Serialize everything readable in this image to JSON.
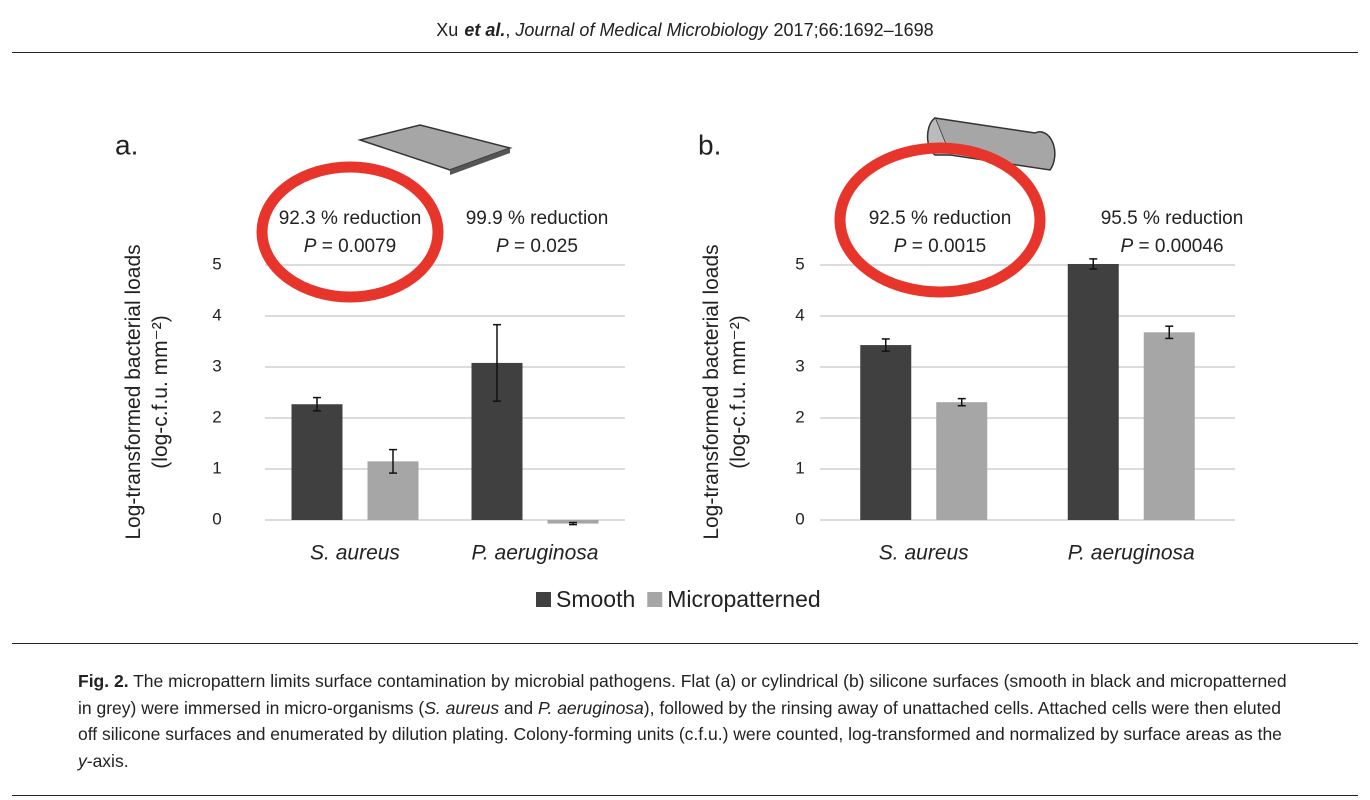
{
  "header": {
    "author": "Xu",
    "etal": "et al.",
    "journal": "Journal of Medical Microbiology",
    "citation": "2017;66:1692–1698"
  },
  "chart_data": [
    {
      "type": "bar",
      "panel": "a.",
      "ylabel": [
        "Log-transformed bacterial loads",
        "(log-c.f.u. mm⁻²)"
      ],
      "annotations": [
        [
          "92.3 % reduction",
          "P = 0.0079"
        ],
        [
          "99.9 % reduction",
          "P = 0.025"
        ]
      ],
      "categories": [
        "S. aureus",
        "P. aeruginosa"
      ],
      "series": [
        {
          "name": "Smooth",
          "color": "#404040",
          "values": [
            2.27,
            3.08
          ],
          "errors": [
            0.13,
            0.75
          ]
        },
        {
          "name": "Micropatterned",
          "color": "#a6a6a6",
          "values": [
            1.15,
            -0.07
          ],
          "errors": [
            0.23,
            0.02
          ]
        }
      ],
      "ylim": [
        0,
        5
      ],
      "yticks": [
        0,
        1,
        2,
        3,
        4,
        5
      ],
      "grid": true
    },
    {
      "type": "bar",
      "panel": "b.",
      "ylabel": [
        "Log-transformed bacterial loads",
        "(log-c.f.u. mm⁻²)"
      ],
      "annotations": [
        [
          "92.5 % reduction",
          "P = 0.0015"
        ],
        [
          "95.5 % reduction",
          "P = 0.00046"
        ]
      ],
      "categories": [
        "S. aureus",
        "P. aeruginosa"
      ],
      "series": [
        {
          "color": "#404040",
          "values": [
            3.43,
            5.02
          ],
          "errors": [
            0.12,
            0.1
          ]
        },
        {
          "color": "#a6a6a6",
          "values": [
            2.31,
            3.68
          ],
          "errors": [
            0.07,
            0.12
          ]
        }
      ],
      "ylim": [
        0,
        5
      ],
      "yticks": [
        0,
        1,
        2,
        3,
        4,
        5
      ],
      "grid": true
    }
  ],
  "caption": {
    "label": "Fig. 2.",
    "runs": [
      {
        "text": "The micropattern limits surface contamination by microbial pathogens. Flat (a) or cylindrical (b) silicone surfaces (smooth in black and micropatterned in grey) were immersed in micro-organisms ("
      },
      {
        "text": "S. aureus",
        "italic": true
      },
      {
        "text": " and "
      },
      {
        "text": "P. aeruginosa",
        "italic": true
      },
      {
        "text": "), followed by the rinsing away of unattached cells. Attached cells were then eluted off silicone surfaces and enumerated by dilution plating. Colony-forming units (c.f.u.) were counted, log-transformed and normalized by surface areas as the "
      },
      {
        "text": "y",
        "italic": true
      },
      {
        "text": "-axis."
      }
    ]
  }
}
